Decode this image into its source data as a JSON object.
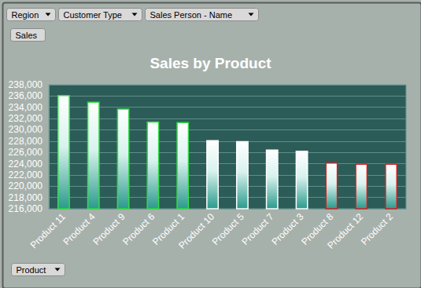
{
  "chart_data": {
    "type": "bar",
    "title": "Sales by Product",
    "x_label": "Product",
    "y_label": "Sales",
    "annotations": [
      "Region",
      "Customer Type",
      "Sales Person - Name"
    ],
    "categories": [
      "Product 11",
      "Product 4",
      "Product 9",
      "Product 6",
      "Product 1",
      "Product 10",
      "Product 5",
      "Product 7",
      "Product 3",
      "Product 8",
      "Product 12",
      "Product 2"
    ],
    "values": [
      236200,
      235000,
      233800,
      231500,
      231400,
      228200,
      228000,
      226500,
      226300,
      224200,
      224000,
      224000
    ],
    "colors": [
      "#33dd44",
      "#33dd44",
      "#33dd44",
      "#33dd44",
      "#33dd44",
      "#ffffff",
      "#ffffff",
      "#ffffff",
      "#ffffff",
      "#cc2222",
      "#cc2222",
      "#cc2222"
    ],
    "ylim": [
      216000,
      238000
    ],
    "yticks": [
      {
        "value": 216000,
        "label": "216,000"
      },
      {
        "value": 218000,
        "label": "218,000"
      },
      {
        "value": 220000,
        "label": "220,000"
      },
      {
        "value": 222000,
        "label": "222,000"
      },
      {
        "value": 224000,
        "label": "224,000"
      },
      {
        "value": 226000,
        "label": "226,000"
      },
      {
        "value": 228000,
        "label": "228,000"
      },
      {
        "value": 230000,
        "label": "230,000"
      },
      {
        "value": 232000,
        "label": "232,000"
      },
      {
        "value": 234000,
        "label": "234,000"
      },
      {
        "value": 236000,
        "label": "236,000"
      },
      {
        "value": 238000,
        "label": "238,000"
      }
    ],
    "grid": true
  }
}
